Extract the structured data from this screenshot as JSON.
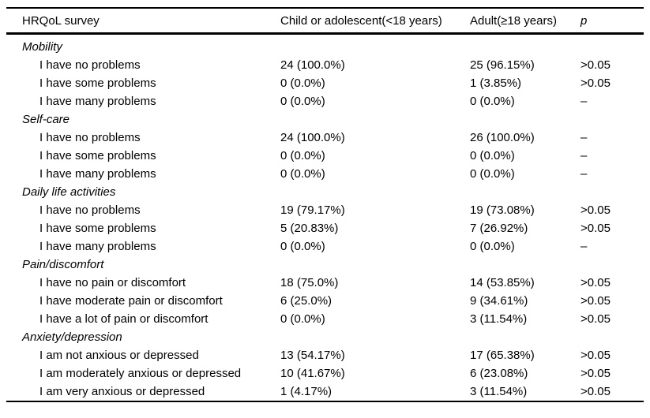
{
  "table": {
    "header": {
      "columns": [
        "HRQoL survey",
        "Child or adolescent(<18 years)",
        "Adult(≥18 years)",
        "p"
      ]
    },
    "sections": [
      {
        "title": "Mobility",
        "rows": [
          {
            "label": "I have no problems",
            "child": "24 (100.0%)",
            "adult": "25 (96.15%)",
            "p": ">0.05"
          },
          {
            "label": "I have some problems",
            "child": "0 (0.0%)",
            "adult": "1 (3.85%)",
            "p": ">0.05"
          },
          {
            "label": "I have many problems",
            "child": "0 (0.0%)",
            "adult": "0 (0.0%)",
            "p": "–"
          }
        ]
      },
      {
        "title": "Self-care",
        "rows": [
          {
            "label": "I have no problems",
            "child": "24 (100.0%)",
            "adult": "26 (100.0%)",
            "p": "–"
          },
          {
            "label": "I have some problems",
            "child": "0 (0.0%)",
            "adult": "0 (0.0%)",
            "p": "–"
          },
          {
            "label": "I have many problems",
            "child": "0 (0.0%)",
            "adult": "0 (0.0%)",
            "p": "–"
          }
        ]
      },
      {
        "title": "Daily life activities",
        "rows": [
          {
            "label": "I have no problems",
            "child": "19 (79.17%)",
            "adult": "19 (73.08%)",
            "p": ">0.05"
          },
          {
            "label": "I have some problems",
            "child": "5 (20.83%)",
            "adult": "7 (26.92%)",
            "p": ">0.05"
          },
          {
            "label": "I have many problems",
            "child": "0 (0.0%)",
            "adult": "0 (0.0%)",
            "p": "–"
          }
        ]
      },
      {
        "title": "Pain/discomfort",
        "rows": [
          {
            "label": "I have no pain or discomfort",
            "child": "18 (75.0%)",
            "adult": "14 (53.85%)",
            "p": ">0.05"
          },
          {
            "label": "I have moderate pain or discomfort",
            "child": "6 (25.0%)",
            "adult": "9 (34.61%)",
            "p": ">0.05"
          },
          {
            "label": "I have a lot of pain or discomfort",
            "child": "0 (0.0%)",
            "adult": "3 (11.54%)",
            "p": ">0.05"
          }
        ]
      },
      {
        "title": "Anxiety/depression",
        "rows": [
          {
            "label": "I am not anxious or depressed",
            "child": "13 (54.17%)",
            "adult": "17 (65.38%)",
            "p": ">0.05"
          },
          {
            "label": "I am moderately anxious or depressed",
            "child": "10 (41.67%)",
            "adult": "6 (23.08%)",
            "p": ">0.05"
          },
          {
            "label": "I am very anxious or depressed",
            "child": "1 (4.17%)",
            "adult": "3 (11.54%)",
            "p": ">0.05"
          }
        ]
      }
    ]
  }
}
